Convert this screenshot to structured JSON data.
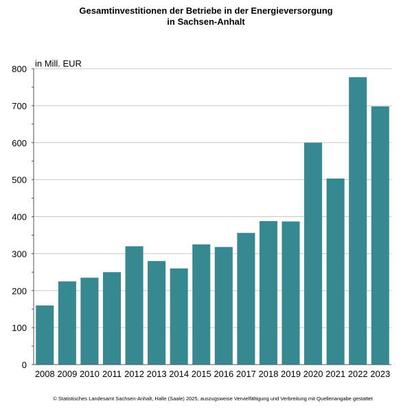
{
  "chart_data": {
    "type": "bar",
    "title_lines": [
      "Gesamtinvestitionen der Betriebe in der Energieversorgung",
      "in Sachsen-Anhalt"
    ],
    "unit_label": "in Mill. EUR",
    "categories": [
      "2008",
      "2009",
      "2010",
      "2011",
      "2012",
      "2013",
      "2014",
      "2015",
      "2016",
      "2017",
      "2018",
      "2019",
      "2020",
      "2021",
      "2022",
      "2023"
    ],
    "values": [
      160,
      225,
      235,
      250,
      320,
      280,
      260,
      325,
      318,
      356,
      388,
      387,
      600,
      503,
      777,
      698
    ],
    "ylim": [
      0,
      800
    ],
    "yticks": [
      0,
      100,
      200,
      300,
      400,
      500,
      600,
      700,
      800
    ],
    "grid": true,
    "bar_color": "#368990",
    "grid_color": "#c8c8c8",
    "source": "© Statistisches Landesamt Sachsen-Anhalt, Halle (Saale) 2025, auszugsweise Vervielfältigung und Verbreitung mit Quellenangabe gestattet"
  }
}
